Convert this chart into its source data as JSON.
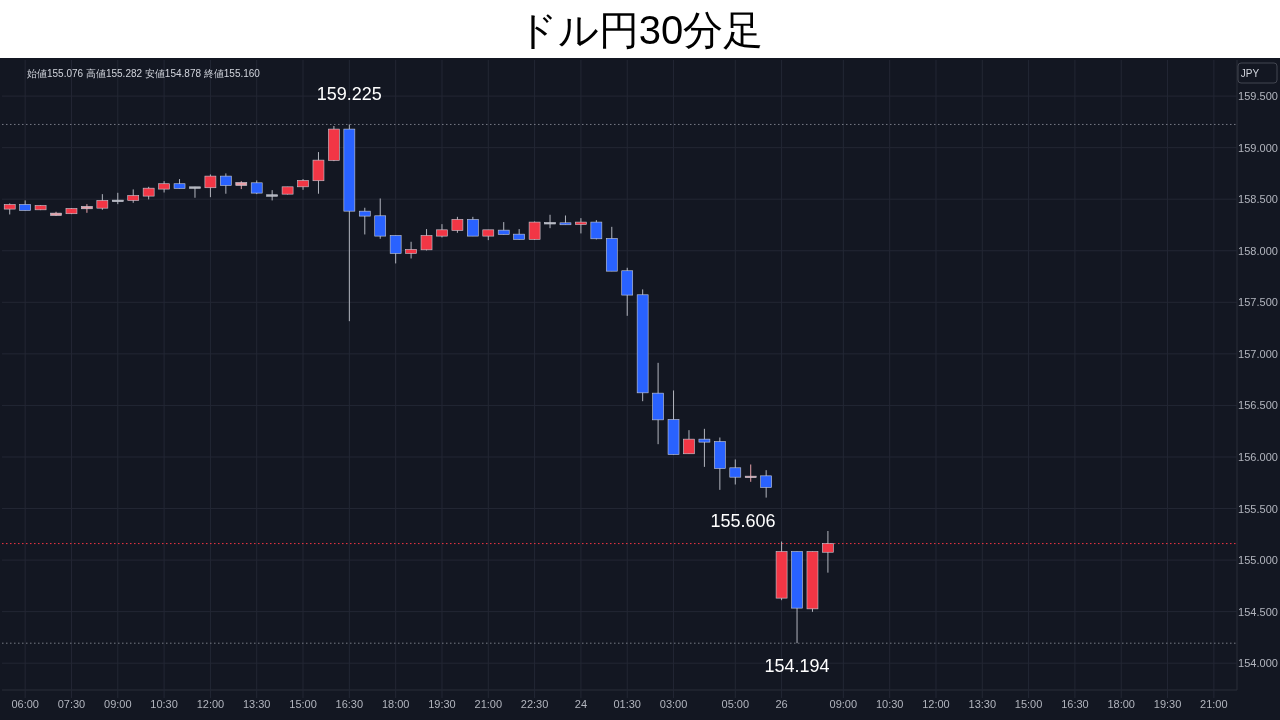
{
  "chart_data": {
    "type": "candlestick",
    "title": "ドル円30分足",
    "annotations": [
      "始値155.076 高値155.282 安値154.878 終値155.160",
      "JPY",
      "155.606"
    ],
    "categories": [
      null,
      "06:00",
      null,
      null,
      "07:30",
      null,
      null,
      "09:00",
      null,
      null,
      "10:30",
      null,
      null,
      "12:00",
      null,
      null,
      "13:30",
      null,
      null,
      "15:00",
      null,
      null,
      "16:30",
      null,
      null,
      "18:00",
      null,
      null,
      "19:30",
      null,
      null,
      "21:00",
      null,
      null,
      "22:30",
      null,
      null,
      "24",
      null,
      null,
      "01:30",
      null,
      null,
      "03:00",
      null,
      null,
      null,
      "05:00",
      null,
      null,
      "26",
      null,
      null,
      null,
      "09:00",
      null,
      null,
      "10:30",
      null,
      null,
      "12:00",
      null,
      null,
      "13:30",
      null,
      null,
      "15:00",
      null,
      null,
      "16:30",
      null,
      null,
      "18:00",
      null,
      null,
      "19:30",
      null,
      null,
      "21:00",
      null
    ],
    "ohlc": [
      [
        158.404,
        158.459,
        158.352,
        158.449
      ],
      [
        158.449,
        158.488,
        158.391,
        158.391
      ],
      [
        158.397,
        158.442,
        158.394,
        158.439
      ],
      [
        158.342,
        158.378,
        158.339,
        158.365
      ],
      [
        158.359,
        158.414,
        158.355,
        158.41
      ],
      [
        158.407,
        158.452,
        158.368,
        158.43
      ],
      [
        158.413,
        158.549,
        158.397,
        158.488
      ],
      [
        158.491,
        158.562,
        158.452,
        158.491
      ],
      [
        158.488,
        158.595,
        158.465,
        158.536
      ],
      [
        158.53,
        158.62,
        158.498,
        158.607
      ],
      [
        158.598,
        158.675,
        158.565,
        158.65
      ],
      [
        158.65,
        158.695,
        158.604,
        158.604
      ],
      [
        158.62,
        158.62,
        158.514,
        158.62
      ],
      [
        158.611,
        158.74,
        158.52,
        158.724
      ],
      [
        158.724,
        158.75,
        158.553,
        158.633
      ],
      [
        158.633,
        158.675,
        158.598,
        158.662
      ],
      [
        158.659,
        158.682,
        158.549,
        158.559
      ],
      [
        158.543,
        158.588,
        158.488,
        158.543
      ],
      [
        158.549,
        158.62,
        158.546,
        158.62
      ],
      [
        158.62,
        158.695,
        158.591,
        158.682
      ],
      [
        158.679,
        158.957,
        158.553,
        158.879
      ],
      [
        158.876,
        159.21,
        158.869,
        159.18
      ],
      [
        159.18,
        159.225,
        157.317,
        158.384
      ],
      [
        158.384,
        158.417,
        158.158,
        158.336
      ],
      [
        158.339,
        158.507,
        158.116,
        158.142
      ],
      [
        158.148,
        158.148,
        157.877,
        157.974
      ],
      [
        157.974,
        158.087,
        157.925,
        158.013
      ],
      [
        158.009,
        158.21,
        158.003,
        158.148
      ],
      [
        158.142,
        158.258,
        158.129,
        158.203
      ],
      [
        158.197,
        158.329,
        158.174,
        158.304
      ],
      [
        158.304,
        158.329,
        158.142,
        158.142
      ],
      [
        158.142,
        158.203,
        158.103,
        158.203
      ],
      [
        158.2,
        158.278,
        158.158,
        158.158
      ],
      [
        158.161,
        158.21,
        158.11,
        158.11
      ],
      [
        158.11,
        158.284,
        158.106,
        158.278
      ],
      [
        158.274,
        158.349,
        158.219,
        158.274
      ],
      [
        158.271,
        158.342,
        158.252,
        158.252
      ],
      [
        158.255,
        158.316,
        158.168,
        158.278
      ],
      [
        158.278,
        158.297,
        158.11,
        158.116
      ],
      [
        158.119,
        158.232,
        157.802,
        157.802
      ],
      [
        157.806,
        157.835,
        157.369,
        157.57
      ],
      [
        157.573,
        157.625,
        156.541,
        156.622
      ],
      [
        156.619,
        156.913,
        156.124,
        156.36
      ],
      [
        156.364,
        156.645,
        156.024,
        156.024
      ],
      [
        156.031,
        156.26,
        156.031,
        156.173
      ],
      [
        156.173,
        156.273,
        155.904,
        156.144
      ],
      [
        156.15,
        156.189,
        155.681,
        155.888
      ],
      [
        155.895,
        155.976,
        155.733,
        155.804
      ],
      [
        155.814,
        155.927,
        155.759,
        155.814
      ],
      [
        155.817,
        155.872,
        155.606,
        155.704
      ],
      [
        154.631,
        155.18,
        154.611,
        155.083
      ],
      [
        155.083,
        155.083,
        154.194,
        154.534
      ],
      [
        154.527,
        155.083,
        154.498,
        155.083
      ],
      [
        155.076,
        155.282,
        154.878,
        155.16
      ],
      null,
      null,
      null,
      null,
      null,
      null,
      null,
      null,
      null,
      null,
      null,
      null,
      null,
      null,
      null,
      null,
      null,
      null,
      null,
      null,
      null,
      null,
      null,
      null,
      null,
      null
    ],
    "colors": [
      "#f23645",
      "#2962ff",
      "#f23645",
      "#e8a0a8",
      "#f23645",
      "#e8a0a8",
      "#f23645",
      "#b2b5be",
      "#f23645",
      "#f23645",
      "#f23645",
      "#2962ff",
      "#b2b5be",
      "#f23645",
      "#2962ff",
      "#e8a0a8",
      "#2962ff",
      "#b2b5be",
      "#f23645",
      "#f23645",
      "#f23645",
      "#f23645",
      "#2962ff",
      "#2962ff",
      "#2962ff",
      "#2962ff",
      "#f23645",
      "#f23645",
      "#f23645",
      "#f23645",
      "#2962ff",
      "#f23645",
      "#2962ff",
      "#2962ff",
      "#f23645",
      "#b2b5be",
      "#2962ff",
      "#f23645",
      "#2962ff",
      "#2962ff",
      "#2962ff",
      "#2962ff",
      "#2962ff",
      "#2962ff",
      "#f23645",
      "#2962ff",
      "#2962ff",
      "#2962ff",
      "#e8a0a8",
      "#2962ff",
      "#f23645",
      "#2962ff",
      "#f23645",
      "#f23645",
      null,
      null,
      null,
      null,
      null,
      null,
      null,
      null,
      null,
      null,
      null,
      null,
      null,
      null,
      null,
      null,
      null,
      null,
      null,
      null,
      null,
      null,
      null,
      null,
      null,
      null
    ],
    "ylim": [
      153.74,
      159.85
    ],
    "yticks": [
      {
        "value": 154,
        "label": "154.000"
      },
      {
        "value": 154.5,
        "label": "154.500"
      },
      {
        "value": 155,
        "label": "155.000"
      },
      {
        "value": 155.5,
        "label": "155.500"
      },
      {
        "value": 156,
        "label": "156.000"
      },
      {
        "value": 156.5,
        "label": "156.500"
      },
      {
        "value": 157,
        "label": "157.000"
      },
      {
        "value": 157.5,
        "label": "157.500"
      },
      {
        "value": 158,
        "label": "158.000"
      },
      {
        "value": 158.5,
        "label": "158.500"
      },
      {
        "value": 159,
        "label": "159.000"
      },
      {
        "value": 159.5,
        "label": "159.500"
      }
    ],
    "ref_lines": [
      {
        "axis": "y",
        "value": 159.225,
        "label": "159.225",
        "color": "#787b86",
        "line_style": "dotted"
      },
      {
        "axis": "y",
        "value": 154.194,
        "label": "154.194",
        "color": "#787b86",
        "line_style": "dotted"
      },
      {
        "axis": "y",
        "value": 155.16,
        "color": "#f23645",
        "line_style": "dotted"
      }
    ],
    "grid": true
  }
}
